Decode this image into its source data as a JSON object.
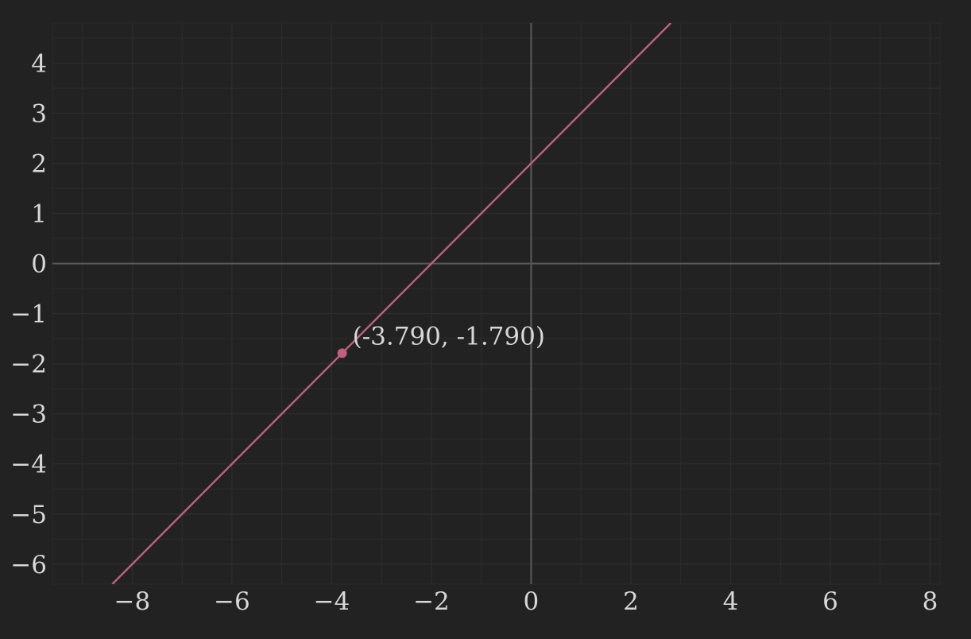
{
  "chart_data": {
    "type": "line",
    "title": "",
    "xlabel": "",
    "ylabel": "",
    "xlim": [
      -9.6,
      8.2
    ],
    "ylim": [
      -6.4,
      4.8
    ],
    "grid": true,
    "x_ticks": [
      -8,
      -6,
      -4,
      -2,
      0,
      2,
      4,
      6,
      8
    ],
    "y_ticks": [
      -6,
      -5,
      -4,
      -3,
      -2,
      -1,
      0,
      1,
      2,
      3,
      4
    ],
    "x_tick_labels": [
      "−8",
      "−6",
      "−4",
      "−2",
      "0",
      "2",
      "4",
      "6",
      "8"
    ],
    "y_tick_labels": [
      "−6",
      "−5",
      "−4",
      "−3",
      "−2",
      "−1",
      "0",
      "1",
      "2",
      "3",
      "4"
    ],
    "series": [
      {
        "equation": "y = x + 2",
        "x": [
          -8.4,
          2.8
        ],
        "y": [
          -6.4,
          4.8
        ],
        "color": "#c0607e"
      }
    ],
    "annotations": [
      {
        "x": -3.79,
        "y": -1.79,
        "label": "(-3.790, -1.790)",
        "color": "#c0607e"
      }
    ]
  },
  "colors": {
    "background": "#222222",
    "grid": "#2d2d2d",
    "axis": "#5a5a5a",
    "text": "#d7d7d7",
    "line": "#c0607e"
  }
}
